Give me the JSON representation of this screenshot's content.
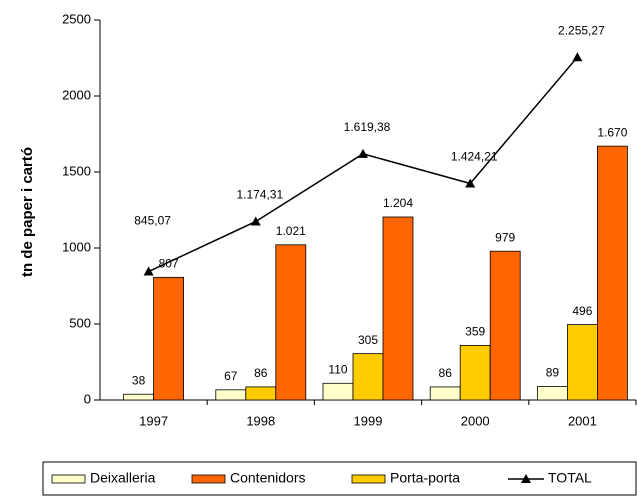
{
  "chart_data": {
    "type": "bar_line",
    "y_label": "tn de paper i cartó",
    "categories": [
      "1997",
      "1998",
      "1999",
      "2000",
      "2001"
    ],
    "series": [
      {
        "name": "Deixalleria",
        "color": "#ffffcc",
        "values": [
          38,
          67,
          110,
          86,
          89
        ]
      },
      {
        "name": "Porta-porta",
        "color": "#ffcc00",
        "values": [
          null,
          86,
          305,
          359,
          496
        ]
      },
      {
        "name": "Contenidors",
        "color": "#ff6600",
        "values": [
          807,
          1021,
          1204,
          979,
          1670
        ],
        "value_labels": [
          "807",
          "1.021",
          "1.204",
          "979",
          "1.670"
        ]
      },
      {
        "name": "TOTAL",
        "color": "#000000",
        "type": "line",
        "values": [
          845.07,
          1174.31,
          1619.38,
          1424.21,
          2255.27
        ],
        "value_labels": [
          "845,07",
          "1.174,31",
          "1.619,38",
          "1.424,21",
          "2.255,27"
        ]
      }
    ],
    "ylim": [
      0,
      2500
    ],
    "yticks": [
      0,
      500,
      1000,
      1500,
      2000,
      2500
    ],
    "grid": false,
    "legend": "bottom"
  }
}
